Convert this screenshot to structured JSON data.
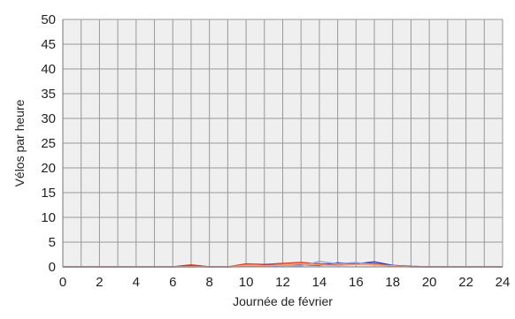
{
  "chart_data": {
    "type": "line",
    "title": "",
    "xlabel": "Journée de février",
    "ylabel": "Vélos par heure",
    "xlim": [
      0,
      24
    ],
    "ylim": [
      0,
      50
    ],
    "x_ticks": [
      0,
      2,
      4,
      6,
      8,
      10,
      12,
      14,
      16,
      18,
      20,
      22,
      24
    ],
    "y_ticks": [
      0,
      5,
      10,
      15,
      20,
      25,
      30,
      35,
      40,
      45,
      50
    ],
    "grid": true,
    "legend": "none",
    "series": [
      {
        "color": "#e8401c",
        "x": [
          0,
          1,
          2,
          3,
          4,
          5,
          6,
          7,
          8,
          9,
          10,
          11,
          12,
          13,
          14,
          15,
          16,
          17,
          18,
          19,
          20,
          21,
          22,
          23,
          24
        ],
        "values": [
          0,
          0,
          0,
          0,
          0,
          0,
          0,
          0.4,
          0,
          0,
          0.6,
          0.5,
          0.7,
          0.9,
          0.6,
          0.5,
          0.8,
          0.6,
          0.3,
          0.1,
          0,
          0,
          0,
          0,
          0
        ]
      },
      {
        "color": "#3c3cc4",
        "x": [
          0,
          1,
          2,
          3,
          4,
          5,
          6,
          7,
          8,
          9,
          10,
          11,
          12,
          13,
          14,
          15,
          16,
          17,
          18,
          19,
          20,
          21,
          22,
          23,
          24
        ],
        "values": [
          0,
          0,
          0,
          0,
          0,
          0,
          0,
          0.2,
          0,
          0,
          0.1,
          0.3,
          0.4,
          0.5,
          0.3,
          0.8,
          0.6,
          1.0,
          0.3,
          0.1,
          0,
          0,
          0,
          0,
          0
        ]
      },
      {
        "color": "#9aa6ea",
        "x": [
          0,
          1,
          2,
          3,
          4,
          5,
          6,
          7,
          8,
          9,
          10,
          11,
          12,
          13,
          14,
          15,
          16,
          17,
          18,
          19,
          20,
          21,
          22,
          23,
          24
        ],
        "values": [
          0,
          0,
          0,
          0,
          0,
          0,
          0,
          0,
          0,
          0,
          0.2,
          0.1,
          0.3,
          0.2,
          1.1,
          0.6,
          0.9,
          0.4,
          0.2,
          0,
          0,
          0,
          0,
          0,
          0
        ]
      },
      {
        "color": "#f2a070",
        "x": [
          0,
          1,
          2,
          3,
          4,
          5,
          6,
          7,
          8,
          9,
          10,
          11,
          12,
          13,
          14,
          15,
          16,
          17,
          18,
          19,
          20,
          21,
          22,
          23,
          24
        ],
        "values": [
          0,
          0,
          0,
          0,
          0,
          0,
          0,
          0.1,
          0,
          0,
          0.3,
          0.2,
          0.4,
          0.6,
          0.4,
          0.3,
          0.5,
          0.4,
          0.2,
          0,
          0,
          0,
          0,
          0,
          0
        ]
      }
    ]
  },
  "colors": {
    "plot_background": "#efefef",
    "page_background": "#ffffff",
    "grid": "#999999",
    "axis": "#777777"
  }
}
